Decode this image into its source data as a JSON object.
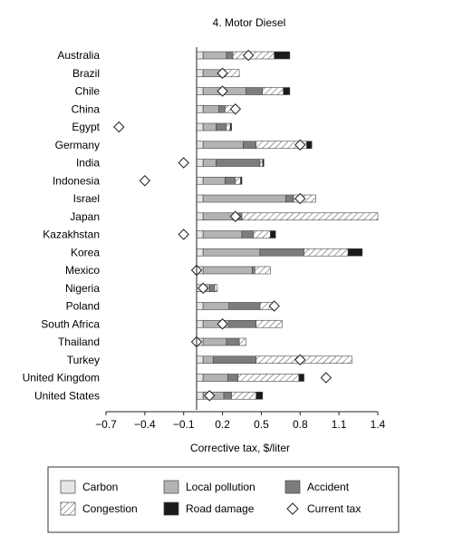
{
  "chart_data": {
    "type": "bar",
    "stacked": true,
    "orientation": "horizontal",
    "title": "4. Motor Diesel",
    "xlabel": "Corrective tax, $/liter",
    "xlim": [
      -0.7,
      1.4
    ],
    "xticks": [
      "−0.7",
      "−0.4",
      "−0.1",
      "0.2",
      "0.5",
      "0.8",
      "1.1",
      "1.4"
    ],
    "xtick_values": [
      -0.7,
      -0.4,
      -0.1,
      0.2,
      0.5,
      0.8,
      1.1,
      1.4
    ],
    "categories": [
      "Australia",
      "Brazil",
      "Chile",
      "China",
      "Egypt",
      "Germany",
      "India",
      "Indonesia",
      "Israel",
      "Japan",
      "Kazakhstan",
      "Korea",
      "Mexico",
      "Nigeria",
      "Poland",
      "South Africa",
      "Thailand",
      "Turkey",
      "United Kingdom",
      "United States"
    ],
    "series": [
      {
        "name": "Carbon",
        "color": "#e6e6e6",
        "pattern": "none",
        "values": [
          0.05,
          0.05,
          0.05,
          0.05,
          0.05,
          0.05,
          0.05,
          0.05,
          0.05,
          0.05,
          0.05,
          0.05,
          0.05,
          0.05,
          0.05,
          0.05,
          0.05,
          0.05,
          0.05,
          0.05
        ]
      },
      {
        "name": "Local pollution",
        "color": "#b3b3b3",
        "pattern": "none",
        "values": [
          0.18,
          0.13,
          0.33,
          0.12,
          0.1,
          0.31,
          0.1,
          0.17,
          0.64,
          0.23,
          0.3,
          0.44,
          0.38,
          0.05,
          0.2,
          0.2,
          0.18,
          0.08,
          0.19,
          0.16
        ]
      },
      {
        "name": "Accident",
        "color": "#7d7d7d",
        "pattern": "none",
        "values": [
          0.05,
          0.03,
          0.13,
          0.05,
          0.08,
          0.1,
          0.34,
          0.08,
          0.06,
          0.07,
          0.09,
          0.34,
          0.02,
          0.04,
          0.24,
          0.21,
          0.1,
          0.33,
          0.08,
          0.06
        ]
      },
      {
        "name": "Congestion",
        "color": "#ffffff",
        "pattern": "hatch",
        "values": [
          0.32,
          0.12,
          0.16,
          0.07,
          0.03,
          0.39,
          0.02,
          0.04,
          0.17,
          1.05,
          0.13,
          0.34,
          0.12,
          0.02,
          0.12,
          0.2,
          0.05,
          0.74,
          0.47,
          0.19
        ]
      },
      {
        "name": "Road damage",
        "color": "#1a1a1a",
        "pattern": "none",
        "values": [
          0.12,
          0.0,
          0.05,
          0.01,
          0.01,
          0.04,
          0.01,
          0.01,
          0.0,
          0.0,
          0.04,
          0.11,
          0.0,
          0.0,
          0.0,
          0.0,
          0.0,
          0.0,
          0.04,
          0.05
        ]
      }
    ],
    "current_tax": {
      "name": "Current tax",
      "marker": "diamond",
      "values": [
        0.4,
        0.2,
        0.2,
        0.3,
        -0.6,
        0.8,
        -0.1,
        -0.4,
        0.8,
        0.3,
        -0.1,
        null,
        0.0,
        0.05,
        0.6,
        0.2,
        0.0,
        0.8,
        1.0,
        0.1
      ]
    },
    "legend": {
      "position": "bottom",
      "columns": 3
    },
    "grid": false
  }
}
